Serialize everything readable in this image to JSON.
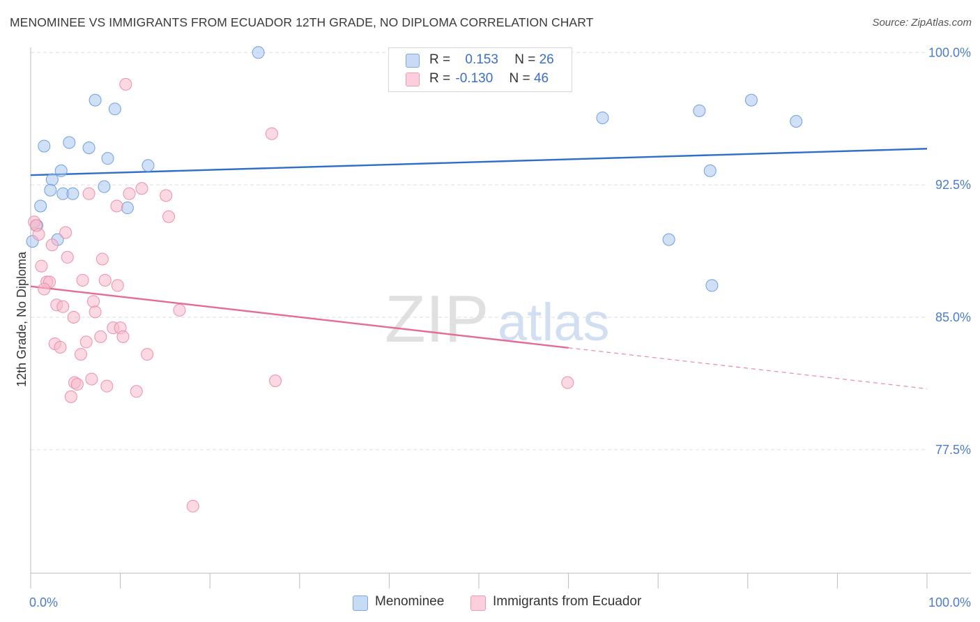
{
  "header": {
    "title": "MENOMINEE VS IMMIGRANTS FROM ECUADOR 12TH GRADE, NO DIPLOMA CORRELATION CHART",
    "source": "Source: ZipAtlas.com"
  },
  "watermark": {
    "zip": "ZIP",
    "atlas": "atlas"
  },
  "legend_stats": [
    {
      "series": "Menominee",
      "r_label": "R =",
      "r_value": "0.153",
      "n_label": "N =",
      "n_value": "26",
      "color": "#a9c7ee"
    },
    {
      "series": "Immigrants from Ecuador",
      "r_label": "R =",
      "r_value": "-0.130",
      "n_label": "N =",
      "n_value": "46",
      "color": "#f6b9cb"
    }
  ],
  "chart_data": {
    "type": "scatter",
    "title": "MENOMINEE VS IMMIGRANTS FROM ECUADOR 12TH GRADE, NO DIPLOMA CORRELATION CHART",
    "xlabel": "",
    "ylabel": "12th Grade, No Diploma",
    "xlim": [
      0,
      100
    ],
    "ylim": [
      70.5,
      101
    ],
    "x_tick_labels": [
      "0.0%",
      "100.0%"
    ],
    "y_ticks": [
      77.5,
      85.0,
      92.5,
      100.0
    ],
    "y_tick_labels": [
      "77.5%",
      "85.0%",
      "92.5%",
      "100.0%"
    ],
    "grid": true,
    "legend_position": "bottom-center",
    "series": [
      {
        "name": "Menominee",
        "color": "#a9c7ee",
        "edge": "#6f9fdc",
        "trend_color": "#2f6fcb",
        "trend": {
          "x0": 0,
          "y0": 93.05,
          "x1": 100,
          "y1": 94.55,
          "solid_until": 100
        },
        "points": [
          {
            "x": 25.4,
            "y": 100.0
          },
          {
            "x": 7.2,
            "y": 97.3
          },
          {
            "x": 9.4,
            "y": 96.8
          },
          {
            "x": 1.5,
            "y": 94.7
          },
          {
            "x": 4.3,
            "y": 94.9
          },
          {
            "x": 6.5,
            "y": 94.6
          },
          {
            "x": 8.6,
            "y": 94.0
          },
          {
            "x": 13.1,
            "y": 93.6
          },
          {
            "x": 3.4,
            "y": 93.3
          },
          {
            "x": 2.4,
            "y": 92.8
          },
          {
            "x": 8.2,
            "y": 92.4
          },
          {
            "x": 2.2,
            "y": 92.2
          },
          {
            "x": 3.6,
            "y": 92.0
          },
          {
            "x": 4.7,
            "y": 92.0
          },
          {
            "x": 1.1,
            "y": 91.3
          },
          {
            "x": 10.8,
            "y": 91.2
          },
          {
            "x": 0.7,
            "y": 90.2
          },
          {
            "x": 0.2,
            "y": 89.3
          },
          {
            "x": 3.0,
            "y": 89.4
          },
          {
            "x": 63.8,
            "y": 96.3
          },
          {
            "x": 74.6,
            "y": 96.7
          },
          {
            "x": 80.4,
            "y": 97.3
          },
          {
            "x": 85.4,
            "y": 96.1
          },
          {
            "x": 75.8,
            "y": 93.3
          },
          {
            "x": 71.2,
            "y": 89.4
          },
          {
            "x": 76.0,
            "y": 86.8
          }
        ]
      },
      {
        "name": "Immigrants from Ecuador",
        "color": "#f6b9cb",
        "edge": "#ec8faa",
        "trend_color": "#e56b94",
        "trend": {
          "x0": 0,
          "y0": 86.75,
          "x1": 100,
          "y1": 80.95,
          "solid_until": 60
        },
        "points": [
          {
            "x": 10.6,
            "y": 98.2
          },
          {
            "x": 26.9,
            "y": 95.4
          },
          {
            "x": 12.4,
            "y": 92.3
          },
          {
            "x": 6.5,
            "y": 92.0
          },
          {
            "x": 11.0,
            "y": 92.0
          },
          {
            "x": 15.1,
            "y": 91.9
          },
          {
            "x": 9.6,
            "y": 91.3
          },
          {
            "x": 15.4,
            "y": 90.7
          },
          {
            "x": 0.4,
            "y": 90.4
          },
          {
            "x": 0.6,
            "y": 90.2
          },
          {
            "x": 0.9,
            "y": 89.7
          },
          {
            "x": 3.9,
            "y": 89.8
          },
          {
            "x": 2.4,
            "y": 89.1
          },
          {
            "x": 1.2,
            "y": 87.9
          },
          {
            "x": 4.1,
            "y": 88.4
          },
          {
            "x": 8.0,
            "y": 88.3
          },
          {
            "x": 1.8,
            "y": 87.0
          },
          {
            "x": 2.1,
            "y": 87.0
          },
          {
            "x": 5.8,
            "y": 87.1
          },
          {
            "x": 8.3,
            "y": 87.1
          },
          {
            "x": 9.7,
            "y": 86.8
          },
          {
            "x": 1.5,
            "y": 86.6
          },
          {
            "x": 7.0,
            "y": 85.9
          },
          {
            "x": 2.9,
            "y": 85.7
          },
          {
            "x": 3.6,
            "y": 85.6
          },
          {
            "x": 7.2,
            "y": 85.3
          },
          {
            "x": 16.6,
            "y": 85.4
          },
          {
            "x": 4.8,
            "y": 85.0
          },
          {
            "x": 9.2,
            "y": 84.4
          },
          {
            "x": 10.0,
            "y": 84.4
          },
          {
            "x": 7.8,
            "y": 83.9
          },
          {
            "x": 10.3,
            "y": 83.9
          },
          {
            "x": 2.7,
            "y": 83.5
          },
          {
            "x": 6.2,
            "y": 83.6
          },
          {
            "x": 3.3,
            "y": 83.3
          },
          {
            "x": 5.6,
            "y": 82.9
          },
          {
            "x": 13.0,
            "y": 82.9
          },
          {
            "x": 6.8,
            "y": 81.5
          },
          {
            "x": 27.3,
            "y": 81.4
          },
          {
            "x": 4.9,
            "y": 81.3
          },
          {
            "x": 5.2,
            "y": 81.2
          },
          {
            "x": 8.5,
            "y": 81.1
          },
          {
            "x": 11.8,
            "y": 80.8
          },
          {
            "x": 4.5,
            "y": 80.5
          },
          {
            "x": 59.9,
            "y": 81.3
          },
          {
            "x": 18.1,
            "y": 74.3
          }
        ]
      }
    ]
  }
}
